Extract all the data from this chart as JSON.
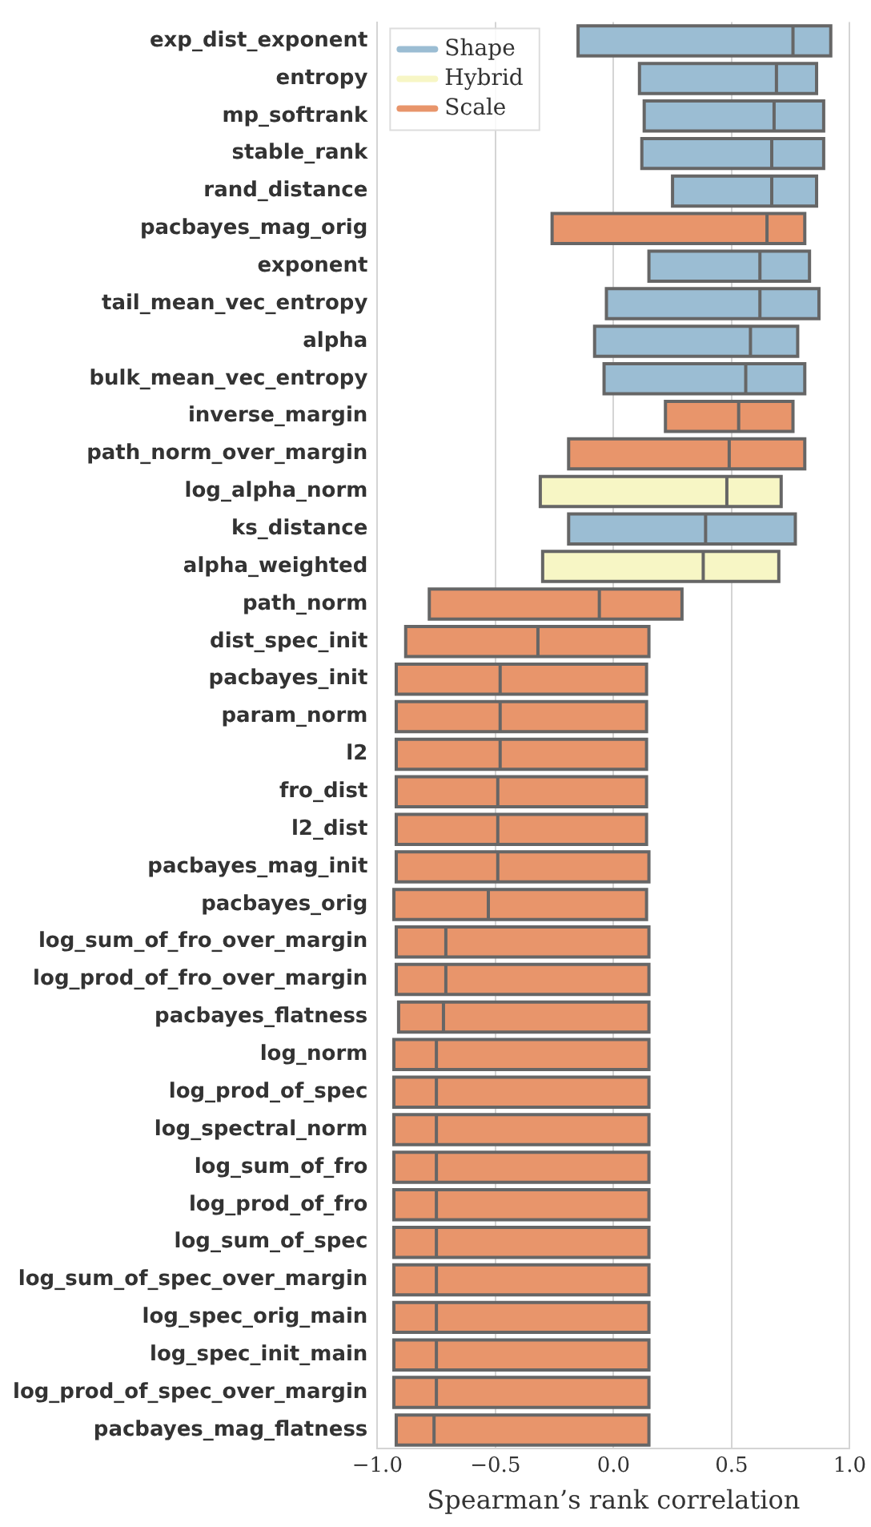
{
  "chart_data": {
    "type": "box",
    "orientation": "horizontal",
    "xlabel": "Spearman’s rank correlation",
    "categories": [
      "exp_dist_exponent",
      "entropy",
      "mp_softrank",
      "stable_rank",
      "rand_distance",
      "pacbayes_mag_orig",
      "exponent",
      "tail_mean_vec_entropy",
      "alpha",
      "bulk_mean_vec_entropy",
      "inverse_margin",
      "path_norm_over_margin",
      "log_alpha_norm",
      "ks_distance",
      "alpha_weighted",
      "path_norm",
      "dist_spec_init",
      "pacbayes_init",
      "param_norm",
      "l2",
      "fro_dist",
      "l2_dist",
      "pacbayes_mag_init",
      "pacbayes_orig",
      "log_sum_of_fro_over_margin",
      "log_prod_of_fro_over_margin",
      "pacbayes_flatness",
      "log_norm",
      "log_prod_of_spec",
      "log_spectral_norm",
      "log_sum_of_fro",
      "log_prod_of_fro",
      "log_sum_of_spec",
      "log_sum_of_spec_over_margin",
      "log_spec_orig_main",
      "log_spec_init_main",
      "log_prod_of_spec_over_margin",
      "pacbayes_mag_flatness"
    ],
    "series": [
      {
        "name": "Shape",
        "color": "#9bbdd3",
        "boxes": [
          {
            "low": -0.15,
            "q1": -0.15,
            "median": 0.76,
            "q3": 0.92,
            "high": 0.92
          },
          {
            "low": 0.11,
            "q1": 0.11,
            "median": 0.69,
            "q3": 0.86,
            "high": 0.86
          },
          {
            "low": 0.13,
            "q1": 0.13,
            "median": 0.68,
            "q3": 0.89,
            "high": 0.89
          },
          {
            "low": 0.12,
            "q1": 0.12,
            "median": 0.67,
            "q3": 0.89,
            "high": 0.89
          },
          {
            "low": 0.25,
            "q1": 0.25,
            "median": 0.67,
            "q3": 0.86,
            "high": 0.86
          },
          null,
          {
            "low": 0.15,
            "q1": 0.15,
            "median": 0.62,
            "q3": 0.83,
            "high": 0.83
          },
          {
            "low": -0.03,
            "q1": -0.03,
            "median": 0.62,
            "q3": 0.87,
            "high": 0.87
          },
          {
            "low": -0.08,
            "q1": -0.08,
            "median": 0.58,
            "q3": 0.78,
            "high": 0.78
          },
          {
            "low": -0.04,
            "q1": -0.04,
            "median": 0.56,
            "q3": 0.81,
            "high": 0.81
          },
          null,
          null,
          null,
          {
            "low": -0.19,
            "q1": -0.19,
            "median": 0.39,
            "q3": 0.77,
            "high": 0.77
          },
          null,
          null,
          null,
          null,
          null,
          null,
          null,
          null,
          null,
          null,
          null,
          null,
          null,
          null,
          null,
          null,
          null,
          null,
          null,
          null,
          null,
          null,
          null,
          null
        ]
      },
      {
        "name": "Hybrid",
        "color": "#f7f6c5",
        "boxes": [
          null,
          null,
          null,
          null,
          null,
          null,
          null,
          null,
          null,
          null,
          null,
          null,
          {
            "low": -0.31,
            "q1": -0.31,
            "median": 0.48,
            "q3": 0.71,
            "high": 0.71
          },
          null,
          {
            "low": -0.3,
            "q1": -0.3,
            "median": 0.38,
            "q3": 0.7,
            "high": 0.7
          },
          null,
          null,
          null,
          null,
          null,
          null,
          null,
          null,
          null,
          null,
          null,
          null,
          null,
          null,
          null,
          null,
          null,
          null,
          null,
          null,
          null,
          null,
          null
        ]
      },
      {
        "name": "Scale",
        "color": "#e8956b",
        "boxes": [
          null,
          null,
          null,
          null,
          null,
          {
            "low": -0.26,
            "q1": -0.26,
            "median": 0.65,
            "q3": 0.81,
            "high": 0.81
          },
          null,
          null,
          null,
          null,
          {
            "low": 0.22,
            "q1": 0.22,
            "median": 0.53,
            "q3": 0.76,
            "high": 0.76
          },
          {
            "low": -0.19,
            "q1": -0.19,
            "median": 0.49,
            "q3": 0.81,
            "high": 0.81
          },
          null,
          null,
          null,
          {
            "low": -0.78,
            "q1": -0.78,
            "median": -0.06,
            "q3": 0.29,
            "high": 0.29
          },
          {
            "low": -0.88,
            "q1": -0.88,
            "median": -0.32,
            "q3": 0.15,
            "high": 0.15
          },
          {
            "low": -0.92,
            "q1": -0.92,
            "median": -0.48,
            "q3": 0.14,
            "high": 0.14
          },
          {
            "low": -0.92,
            "q1": -0.92,
            "median": -0.48,
            "q3": 0.14,
            "high": 0.14
          },
          {
            "low": -0.92,
            "q1": -0.92,
            "median": -0.48,
            "q3": 0.14,
            "high": 0.14
          },
          {
            "low": -0.92,
            "q1": -0.92,
            "median": -0.49,
            "q3": 0.14,
            "high": 0.14
          },
          {
            "low": -0.92,
            "q1": -0.92,
            "median": -0.49,
            "q3": 0.14,
            "high": 0.14
          },
          {
            "low": -0.92,
            "q1": -0.92,
            "median": -0.49,
            "q3": 0.15,
            "high": 0.15
          },
          {
            "low": -0.93,
            "q1": -0.93,
            "median": -0.53,
            "q3": 0.14,
            "high": 0.14
          },
          {
            "low": -0.92,
            "q1": -0.92,
            "median": -0.71,
            "q3": 0.15,
            "high": 0.15
          },
          {
            "low": -0.92,
            "q1": -0.92,
            "median": -0.71,
            "q3": 0.15,
            "high": 0.15
          },
          {
            "low": -0.91,
            "q1": -0.91,
            "median": -0.72,
            "q3": 0.15,
            "high": 0.15
          },
          {
            "low": -0.93,
            "q1": -0.93,
            "median": -0.75,
            "q3": 0.15,
            "high": 0.15
          },
          {
            "low": -0.93,
            "q1": -0.93,
            "median": -0.75,
            "q3": 0.15,
            "high": 0.15
          },
          {
            "low": -0.93,
            "q1": -0.93,
            "median": -0.75,
            "q3": 0.15,
            "high": 0.15
          },
          {
            "low": -0.93,
            "q1": -0.93,
            "median": -0.75,
            "q3": 0.15,
            "high": 0.15
          },
          {
            "low": -0.93,
            "q1": -0.93,
            "median": -0.75,
            "q3": 0.15,
            "high": 0.15
          },
          {
            "low": -0.93,
            "q1": -0.93,
            "median": -0.75,
            "q3": 0.15,
            "high": 0.15
          },
          {
            "low": -0.93,
            "q1": -0.93,
            "median": -0.75,
            "q3": 0.15,
            "high": 0.15
          },
          {
            "low": -0.93,
            "q1": -0.93,
            "median": -0.75,
            "q3": 0.15,
            "high": 0.15
          },
          {
            "low": -0.93,
            "q1": -0.93,
            "median": -0.75,
            "q3": 0.15,
            "high": 0.15
          },
          {
            "low": -0.93,
            "q1": -0.93,
            "median": -0.75,
            "q3": 0.15,
            "high": 0.15
          },
          {
            "low": -0.92,
            "q1": -0.92,
            "median": -0.76,
            "q3": 0.15,
            "high": 0.15
          }
        ]
      }
    ],
    "xlim": [
      -1,
      1
    ],
    "xticks": [
      {
        "value": -1,
        "label": "−1.0"
      },
      {
        "value": -0.5,
        "label": "−0.5"
      },
      {
        "value": 0,
        "label": "0.0"
      },
      {
        "value": 0.5,
        "label": "0.5"
      },
      {
        "value": 1,
        "label": "1.0"
      }
    ],
    "grid": "x",
    "legend": "top left"
  }
}
